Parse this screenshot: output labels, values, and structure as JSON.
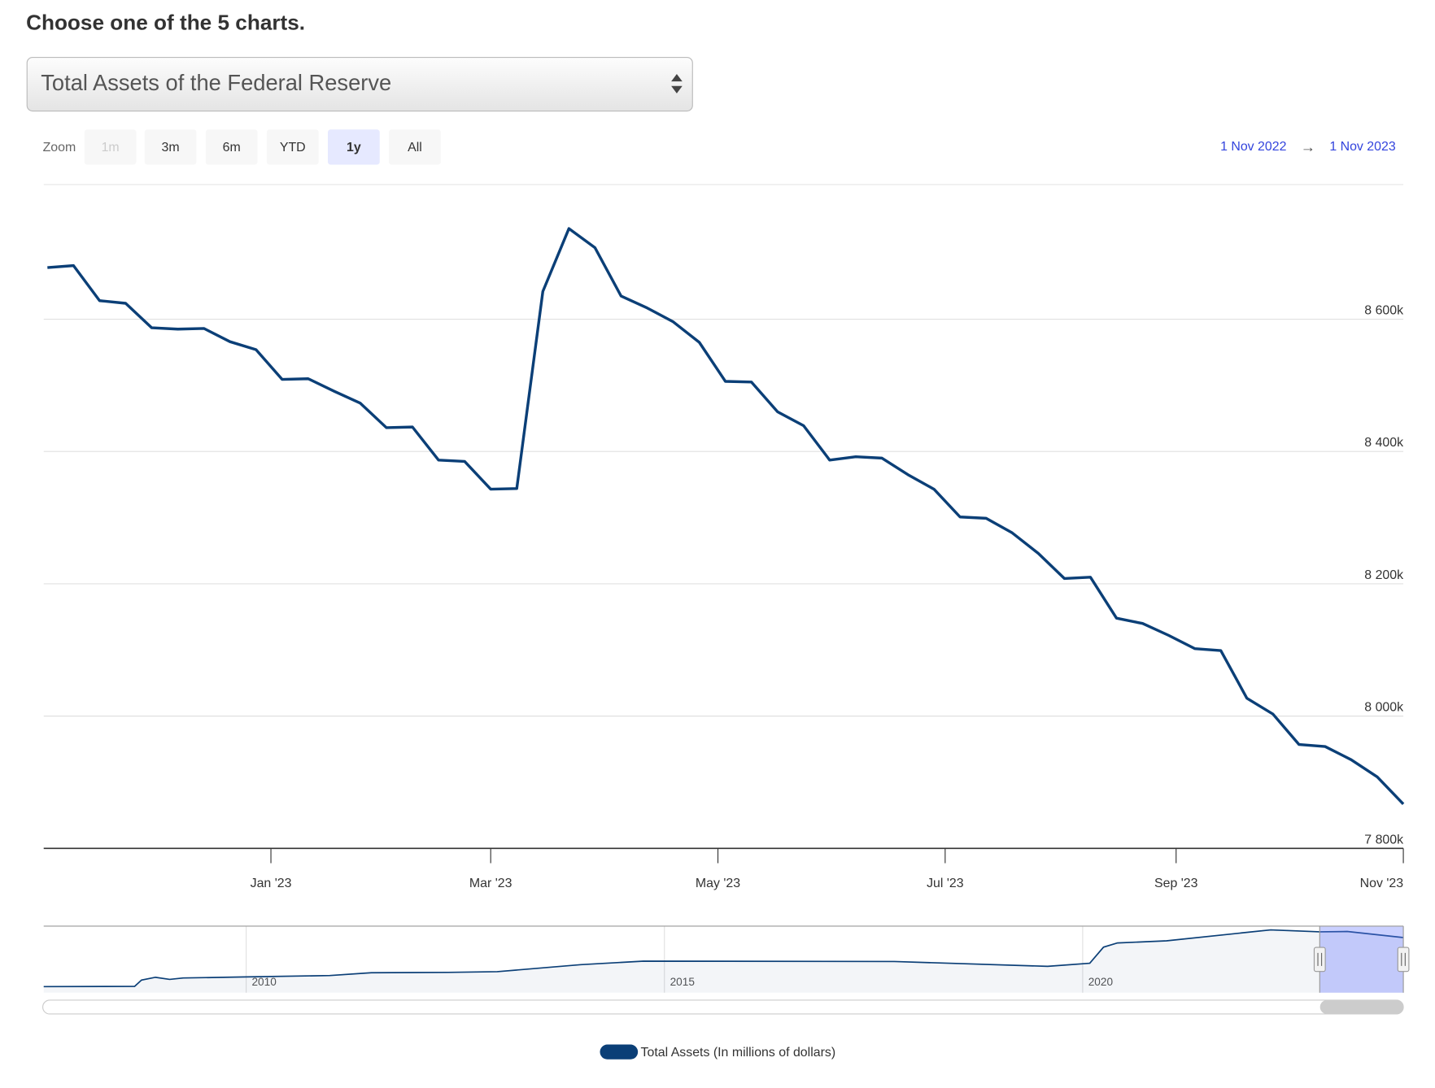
{
  "title": "Choose one of the 5 charts.",
  "select": "Total Assets of the Federal Reserve",
  "zoom": {
    "label": "Zoom",
    "buttons": [
      "1m",
      "3m",
      "6m",
      "YTD",
      "1y",
      "All"
    ],
    "selected": 4,
    "disabled": [
      0
    ]
  },
  "range": {
    "from": "1 Nov 2022",
    "arrow": "→",
    "to": "1 Nov 2023"
  },
  "chart_data": {
    "type": "line",
    "series": [
      {
        "name": "Total Assets (In millions of dollars)",
        "color": "#0b3f77",
        "x": [
          "2022-11-02",
          "2022-11-09",
          "2022-11-16",
          "2022-11-23",
          "2022-11-30",
          "2022-12-07",
          "2022-12-14",
          "2022-12-21",
          "2022-12-28",
          "2023-01-04",
          "2023-01-11",
          "2023-01-18",
          "2023-01-25",
          "2023-02-01",
          "2023-02-08",
          "2023-02-15",
          "2023-02-22",
          "2023-03-01",
          "2023-03-08",
          "2023-03-15",
          "2023-03-22",
          "2023-03-29",
          "2023-04-05",
          "2023-04-12",
          "2023-04-19",
          "2023-04-26",
          "2023-05-03",
          "2023-05-10",
          "2023-05-17",
          "2023-05-24",
          "2023-05-31",
          "2023-06-07",
          "2023-06-14",
          "2023-06-21",
          "2023-06-28",
          "2023-07-05",
          "2023-07-12",
          "2023-07-19",
          "2023-07-26",
          "2023-08-02",
          "2023-08-09",
          "2023-08-16",
          "2023-08-23",
          "2023-08-30",
          "2023-09-06",
          "2023-09-13",
          "2023-09-20",
          "2023-09-27",
          "2023-10-04",
          "2023-10-11",
          "2023-10-18",
          "2023-10-25",
          "2023-11-01"
        ],
        "values": [
          8678000,
          8681000,
          8628000,
          8624000,
          8587000,
          8585000,
          8586000,
          8566000,
          8554000,
          8509000,
          8510000,
          8491000,
          8473000,
          8436000,
          8437000,
          8387000,
          8385000,
          8343000,
          8344000,
          8642000,
          8737000,
          8708000,
          8635000,
          8617000,
          8596000,
          8565000,
          8506000,
          8505000,
          8460000,
          8439000,
          8387000,
          8392000,
          8390000,
          8365000,
          8343000,
          8301000,
          8299000,
          8277000,
          8246000,
          8208000,
          8210000,
          8148000,
          8140000,
          8122000,
          8102000,
          8099000,
          8027000,
          8003000,
          7957000,
          7954000,
          7934000,
          7908000,
          7867000
        ]
      }
    ],
    "xlim": [
      "2022-11-01",
      "2023-11-01"
    ],
    "xticks": [
      {
        "value": "2023-01-01",
        "label": "Jan '23"
      },
      {
        "value": "2023-03-01",
        "label": "Mar '23"
      },
      {
        "value": "2023-05-01",
        "label": "May '23"
      },
      {
        "value": "2023-07-01",
        "label": "Jul '23"
      },
      {
        "value": "2023-09-01",
        "label": "Sep '23"
      },
      {
        "value": "2023-11-01",
        "label": "Nov '23"
      }
    ],
    "ylim": [
      7800000,
      8800000
    ],
    "yticks": [
      {
        "value": 7800000,
        "label": "7 800k"
      },
      {
        "value": 8000000,
        "label": "8 000k"
      },
      {
        "value": 8200000,
        "label": "8 200k"
      },
      {
        "value": 8400000,
        "label": "8 400k"
      },
      {
        "value": 8600000,
        "label": "8 600k"
      }
    ],
    "grid": true,
    "legend": "bottom",
    "navigator": {
      "x": [
        "2007-08",
        "2008-09",
        "2008-10",
        "2008-12",
        "2009-02",
        "2009-04",
        "2010-01",
        "2011-01",
        "2011-07",
        "2012-06",
        "2013-01",
        "2014-01",
        "2014-10",
        "2017-10",
        "2019-08",
        "2020-02",
        "2020-04",
        "2020-06",
        "2021-01",
        "2022-04",
        "2022-11",
        "2023-03",
        "2023-11"
      ],
      "values": [
        870000,
        900000,
        1800000,
        2200000,
        1900000,
        2100000,
        2250000,
        2450000,
        2850000,
        2900000,
        3000000,
        4000000,
        4500000,
        4450000,
        3760000,
        4200000,
        6500000,
        7100000,
        7400000,
        8960000,
        8680000,
        8730000,
        7867000
      ],
      "xlim": [
        "2007-08",
        "2023-11"
      ],
      "ylim": [
        0,
        9500000
      ],
      "xticks": [
        {
          "value": "2010-01",
          "label": "2010"
        },
        {
          "value": "2015-01",
          "label": "2015"
        },
        {
          "value": "2020-01",
          "label": "2020"
        }
      ]
    }
  }
}
